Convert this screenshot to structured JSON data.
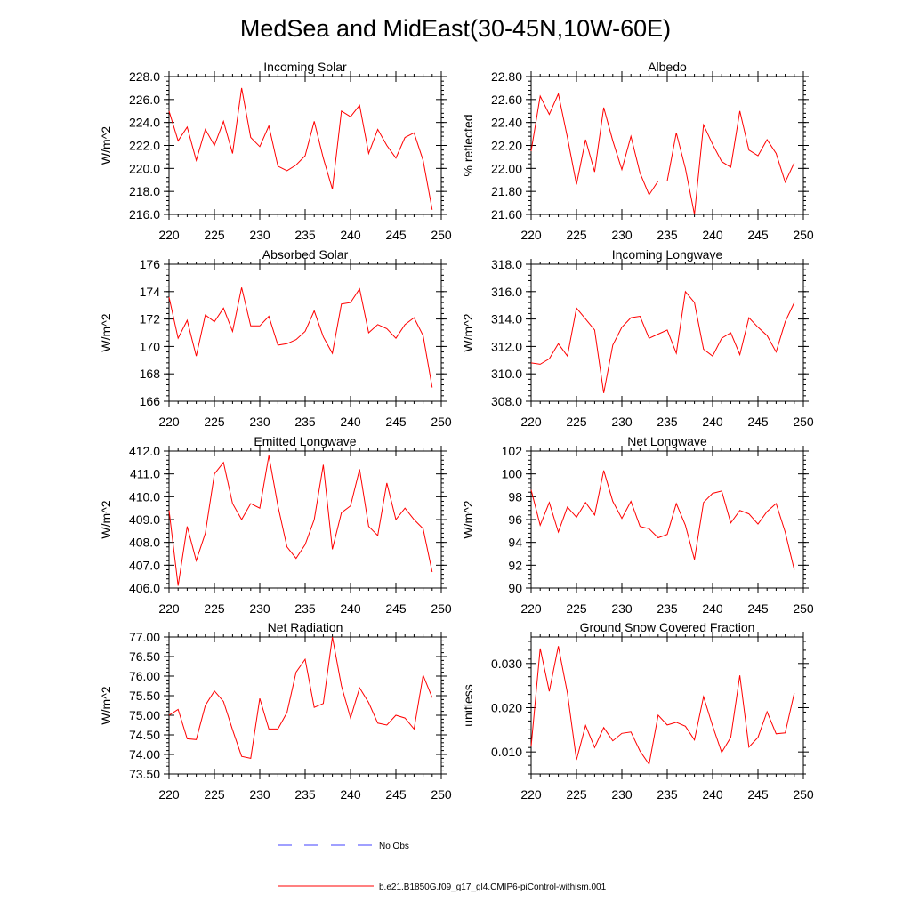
{
  "title": "MedSea and MidEast(30-45N,10W-60E)",
  "colors": {
    "model": "#ff0000",
    "obs": "#4040ff",
    "axis": "#000000"
  },
  "legend": [
    {
      "label": "No Obs",
      "style": "dashed",
      "color": "#4040ff"
    },
    {
      "label": "b.e21.B1850G.f09_g17_gl4.CMIP6-piControl-withism.001",
      "style": "solid",
      "color": "#ff0000"
    }
  ],
  "chart_data": [
    {
      "type": "line",
      "title": "Incoming Solar",
      "xlabel": "",
      "ylabel": "W/m^2",
      "xlim": [
        220,
        250
      ],
      "ylim": [
        216,
        228
      ],
      "xticks": [
        220,
        225,
        230,
        235,
        240,
        245,
        250
      ],
      "xtick_labels": [
        "220",
        "225",
        "230",
        "235",
        "240",
        "245",
        "250"
      ],
      "yticks": [
        216,
        218,
        220,
        222,
        224,
        226,
        228
      ],
      "ytick_labels": [
        "216.0",
        "218.0",
        "220.0",
        "222.0",
        "224.0",
        "226.0",
        "228.0"
      ],
      "series": [
        {
          "name": "b.e21.B1850G.f09_g17_gl4.CMIP6-piControl-withism.001",
          "x": [
            220,
            221,
            222,
            223,
            224,
            225,
            226,
            227,
            228,
            229,
            230,
            231,
            232,
            233,
            234,
            235,
            236,
            237,
            238,
            239,
            240,
            241,
            242,
            243,
            244,
            245,
            246,
            247,
            248,
            249
          ],
          "y": [
            225.0,
            222.4,
            223.6,
            220.7,
            223.4,
            222.0,
            224.1,
            221.3,
            227.0,
            222.7,
            221.9,
            223.7,
            220.2,
            219.8,
            220.3,
            221.1,
            224.1,
            220.9,
            218.2,
            225.0,
            224.5,
            225.5,
            221.3,
            223.4,
            222.0,
            220.9,
            222.7,
            223.1,
            220.7,
            216.4
          ]
        }
      ]
    },
    {
      "type": "line",
      "title": "Albedo",
      "xlabel": "",
      "ylabel": "% reflected",
      "xlim": [
        220,
        250
      ],
      "ylim": [
        21.6,
        22.8
      ],
      "xticks": [
        220,
        225,
        230,
        235,
        240,
        245,
        250
      ],
      "xtick_labels": [
        "220",
        "225",
        "230",
        "235",
        "240",
        "245",
        "250"
      ],
      "yticks": [
        21.6,
        21.8,
        22.0,
        22.2,
        22.4,
        22.6,
        22.8
      ],
      "ytick_labels": [
        "21.60",
        "21.80",
        "22.00",
        "22.20",
        "22.40",
        "22.60",
        "22.80"
      ],
      "series": [
        {
          "name": "b.e21.B1850G.f09_g17_gl4.CMIP6-piControl-withism.001",
          "x": [
            220,
            221,
            222,
            223,
            224,
            225,
            226,
            227,
            228,
            229,
            230,
            231,
            232,
            233,
            234,
            235,
            236,
            237,
            238,
            239,
            240,
            241,
            242,
            243,
            244,
            245,
            246,
            247,
            248,
            249
          ],
          "y": [
            22.15,
            22.63,
            22.47,
            22.65,
            22.27,
            21.86,
            22.25,
            21.97,
            22.53,
            22.24,
            21.99,
            22.28,
            21.96,
            21.77,
            21.89,
            21.89,
            22.31,
            22.0,
            21.6,
            22.38,
            22.21,
            22.06,
            22.01,
            22.5,
            22.16,
            22.11,
            22.25,
            22.13,
            21.88,
            22.05
          ]
        }
      ]
    },
    {
      "type": "line",
      "title": "Absorbed Solar",
      "xlabel": "",
      "ylabel": "W/m^2",
      "xlim": [
        220,
        250
      ],
      "ylim": [
        166,
        176
      ],
      "xticks": [
        220,
        225,
        230,
        235,
        240,
        245,
        250
      ],
      "xtick_labels": [
        "220",
        "225",
        "230",
        "235",
        "240",
        "245",
        "250"
      ],
      "yticks": [
        166,
        168,
        170,
        172,
        174,
        176
      ],
      "ytick_labels": [
        "166",
        "168",
        "170",
        "172",
        "174",
        "176"
      ],
      "series": [
        {
          "name": "b.e21.B1850G.f09_g17_gl4.CMIP6-piControl-withism.001",
          "x": [
            220,
            221,
            222,
            223,
            224,
            225,
            226,
            227,
            228,
            229,
            230,
            231,
            232,
            233,
            234,
            235,
            236,
            237,
            238,
            239,
            240,
            241,
            242,
            243,
            244,
            245,
            246,
            247,
            248,
            249
          ],
          "y": [
            173.6,
            170.6,
            171.9,
            169.3,
            172.3,
            171.8,
            172.8,
            171.1,
            174.3,
            171.5,
            171.5,
            172.2,
            170.1,
            170.2,
            170.5,
            171.1,
            172.6,
            170.7,
            169.5,
            173.1,
            173.2,
            174.2,
            171.0,
            171.6,
            171.3,
            170.6,
            171.6,
            172.1,
            170.8,
            167.0
          ]
        }
      ]
    },
    {
      "type": "line",
      "title": "Incoming Longwave",
      "xlabel": "",
      "ylabel": "W/m^2",
      "xlim": [
        220,
        250
      ],
      "ylim": [
        308,
        318
      ],
      "xticks": [
        220,
        225,
        230,
        235,
        240,
        245,
        250
      ],
      "xtick_labels": [
        "220",
        "225",
        "230",
        "235",
        "240",
        "245",
        "250"
      ],
      "yticks": [
        308,
        310,
        312,
        314,
        316,
        318
      ],
      "ytick_labels": [
        "308.0",
        "310.0",
        "312.0",
        "314.0",
        "316.0",
        "318.0"
      ],
      "series": [
        {
          "name": "b.e21.B1850G.f09_g17_gl4.CMIP6-piControl-withism.001",
          "x": [
            220,
            221,
            222,
            223,
            224,
            225,
            226,
            227,
            228,
            229,
            230,
            231,
            232,
            233,
            234,
            235,
            236,
            237,
            238,
            239,
            240,
            241,
            242,
            243,
            244,
            245,
            246,
            247,
            248,
            249
          ],
          "y": [
            310.8,
            310.7,
            311.1,
            312.2,
            311.3,
            314.8,
            314.0,
            313.2,
            308.6,
            312.1,
            313.4,
            314.1,
            314.2,
            312.6,
            312.9,
            313.2,
            311.5,
            316.0,
            315.2,
            311.8,
            311.3,
            312.6,
            313.0,
            311.4,
            314.1,
            313.4,
            312.8,
            311.6,
            313.8,
            315.2
          ]
        }
      ]
    },
    {
      "type": "line",
      "title": "Emitted Longwave",
      "xlabel": "",
      "ylabel": "W/m^2",
      "xlim": [
        220,
        250
      ],
      "ylim": [
        406,
        412
      ],
      "xticks": [
        220,
        225,
        230,
        235,
        240,
        245,
        250
      ],
      "xtick_labels": [
        "220",
        "225",
        "230",
        "235",
        "240",
        "245",
        "250"
      ],
      "yticks": [
        406,
        407,
        408,
        409,
        410,
        411,
        412
      ],
      "ytick_labels": [
        "406.0",
        "407.0",
        "408.0",
        "409.0",
        "410.0",
        "411.0",
        "412.0"
      ],
      "series": [
        {
          "name": "b.e21.B1850G.f09_g17_gl4.CMIP6-piControl-withism.001",
          "x": [
            220,
            221,
            222,
            223,
            224,
            225,
            226,
            227,
            228,
            229,
            230,
            231,
            232,
            233,
            234,
            235,
            236,
            237,
            238,
            239,
            240,
            241,
            242,
            243,
            244,
            245,
            246,
            247,
            248,
            249
          ],
          "y": [
            409.4,
            406.1,
            408.7,
            407.2,
            408.4,
            411.0,
            411.5,
            409.7,
            409.0,
            409.7,
            409.5,
            411.8,
            409.6,
            407.8,
            407.3,
            407.9,
            409.0,
            411.4,
            407.7,
            409.3,
            409.6,
            411.2,
            408.7,
            408.3,
            410.6,
            409.0,
            409.5,
            409.0,
            408.6,
            406.7
          ]
        }
      ]
    },
    {
      "type": "line",
      "title": "Net Longwave",
      "xlabel": "",
      "ylabel": "W/m^2",
      "xlim": [
        220,
        250
      ],
      "ylim": [
        90,
        102
      ],
      "xticks": [
        220,
        225,
        230,
        235,
        240,
        245,
        250
      ],
      "xtick_labels": [
        "220",
        "225",
        "230",
        "235",
        "240",
        "245",
        "250"
      ],
      "yticks": [
        90,
        92,
        94,
        96,
        98,
        100,
        102
      ],
      "ytick_labels": [
        "90",
        "92",
        "94",
        "96",
        "98",
        "100",
        "102"
      ],
      "series": [
        {
          "name": "b.e21.B1850G.f09_g17_gl4.CMIP6-piControl-withism.001",
          "x": [
            220,
            221,
            222,
            223,
            224,
            225,
            226,
            227,
            228,
            229,
            230,
            231,
            232,
            233,
            234,
            235,
            236,
            237,
            238,
            239,
            240,
            241,
            242,
            243,
            244,
            245,
            246,
            247,
            248,
            249
          ],
          "y": [
            98.6,
            95.5,
            97.5,
            94.9,
            97.1,
            96.2,
            97.5,
            96.4,
            100.3,
            97.6,
            96.1,
            97.6,
            95.4,
            95.2,
            94.4,
            94.7,
            97.4,
            95.5,
            92.5,
            97.5,
            98.3,
            98.5,
            95.7,
            96.8,
            96.5,
            95.6,
            96.7,
            97.4,
            94.9,
            91.6
          ]
        }
      ]
    },
    {
      "type": "line",
      "title": "Net Radiation",
      "xlabel": "",
      "ylabel": "W/m^2",
      "xlim": [
        220,
        250
      ],
      "ylim": [
        73.5,
        77.0
      ],
      "xticks": [
        220,
        225,
        230,
        235,
        240,
        245,
        250
      ],
      "xtick_labels": [
        "220",
        "225",
        "230",
        "235",
        "240",
        "245",
        "250"
      ],
      "yticks": [
        73.5,
        74.0,
        74.5,
        75.0,
        75.5,
        76.0,
        76.5,
        77.0
      ],
      "ytick_labels": [
        "73.50",
        "74.00",
        "74.50",
        "75.00",
        "75.50",
        "76.00",
        "76.50",
        "77.00"
      ],
      "series": [
        {
          "name": "b.e21.B1850G.f09_g17_gl4.CMIP6-piControl-withism.001",
          "x": [
            220,
            221,
            222,
            223,
            224,
            225,
            226,
            227,
            228,
            229,
            230,
            231,
            232,
            233,
            234,
            235,
            236,
            237,
            238,
            239,
            240,
            241,
            242,
            243,
            244,
            245,
            246,
            247,
            248,
            249
          ],
          "y": [
            75.0,
            75.15,
            74.4,
            74.38,
            75.25,
            75.62,
            75.35,
            74.63,
            73.95,
            73.9,
            75.43,
            74.65,
            74.65,
            75.07,
            76.1,
            76.43,
            75.2,
            75.3,
            77.0,
            75.75,
            74.93,
            75.7,
            75.32,
            74.8,
            74.75,
            75.0,
            74.93,
            74.65,
            76.02,
            75.45
          ]
        }
      ]
    },
    {
      "type": "line",
      "title": "Ground Snow Covered Fraction",
      "xlabel": "",
      "ylabel": "unitless",
      "xlim": [
        220,
        250
      ],
      "ylim": [
        0.005,
        0.036
      ],
      "xticks": [
        220,
        225,
        230,
        235,
        240,
        245,
        250
      ],
      "xtick_labels": [
        "220",
        "225",
        "230",
        "235",
        "240",
        "245",
        "250"
      ],
      "yticks": [
        0.01,
        0.02,
        0.03
      ],
      "ytick_labels": [
        "0.010",
        "0.020",
        "0.030"
      ],
      "series": [
        {
          "name": "b.e21.B1850G.f09_g17_gl4.CMIP6-piControl-withism.001",
          "x": [
            220,
            221,
            222,
            223,
            224,
            225,
            226,
            227,
            228,
            229,
            230,
            231,
            232,
            233,
            234,
            235,
            236,
            237,
            238,
            239,
            240,
            241,
            242,
            243,
            244,
            245,
            246,
            247,
            248,
            249
          ],
          "y": [
            0.0112,
            0.0334,
            0.0237,
            0.0339,
            0.0233,
            0.0082,
            0.016,
            0.011,
            0.0155,
            0.0125,
            0.0142,
            0.0145,
            0.0102,
            0.0072,
            0.0183,
            0.0161,
            0.0167,
            0.0158,
            0.0127,
            0.0225,
            0.0159,
            0.0099,
            0.0133,
            0.0273,
            0.0111,
            0.0133,
            0.0191,
            0.0141,
            0.0143,
            0.0233
          ]
        }
      ]
    }
  ]
}
